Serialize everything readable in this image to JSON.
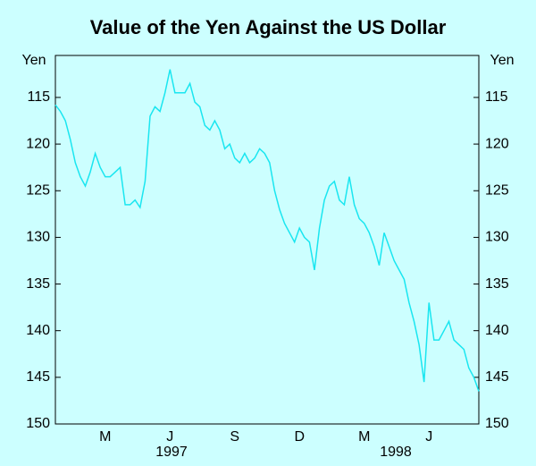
{
  "chart_data": {
    "type": "line",
    "title": "Value of the Yen Against the US Dollar",
    "y_label": "Yen",
    "categories": [
      null,
      null,
      null,
      null,
      null,
      null,
      null,
      null,
      null,
      null,
      "M",
      null,
      null,
      null,
      null,
      null,
      null,
      null,
      null,
      null,
      null,
      null,
      null,
      "J",
      null,
      null,
      null,
      null,
      null,
      null,
      null,
      null,
      null,
      null,
      null,
      null,
      "S",
      null,
      null,
      null,
      null,
      null,
      null,
      null,
      null,
      null,
      null,
      null,
      null,
      "D",
      null,
      null,
      null,
      null,
      null,
      null,
      null,
      null,
      null,
      null,
      null,
      null,
      "M",
      null,
      null,
      null,
      null,
      null,
      null,
      null,
      null,
      null,
      null,
      null,
      null,
      "J",
      null,
      null,
      null,
      null,
      null,
      null,
      null,
      null,
      null,
      null
    ],
    "years": [
      "1997",
      "1998"
    ],
    "series": [
      {
        "name": "Yen",
        "color": "#19e6f0",
        "values": [
          115.8,
          116.5,
          117.5,
          119.5,
          122,
          123.5,
          124.5,
          123,
          121,
          122.5,
          123.5,
          123.5,
          123,
          122.5,
          126.5,
          126.5,
          126,
          126.8,
          124,
          117,
          116,
          116.5,
          114.5,
          112,
          114.5,
          114.5,
          114.5,
          113.5,
          115.5,
          116,
          118,
          118.5,
          117.5,
          118.5,
          120.5,
          120,
          121.5,
          122,
          121,
          122,
          121.5,
          120.5,
          121,
          122,
          125,
          127,
          128.5,
          129.5,
          130.5,
          129,
          130,
          130.5,
          133.5,
          129,
          126,
          124.5,
          124,
          126,
          126.5,
          123.5,
          126.5,
          128,
          128.5,
          129.5,
          131,
          133,
          129.5,
          131,
          132.5,
          133.5,
          134.5,
          137,
          139,
          141.5,
          145.5,
          137,
          141,
          141,
          140,
          139,
          141,
          141.5,
          142,
          144,
          145,
          146.5
        ]
      }
    ],
    "ylim": [
      150,
      110.5
    ],
    "yticks": [
      115,
      120,
      125,
      130,
      135,
      140,
      145,
      150
    ]
  }
}
